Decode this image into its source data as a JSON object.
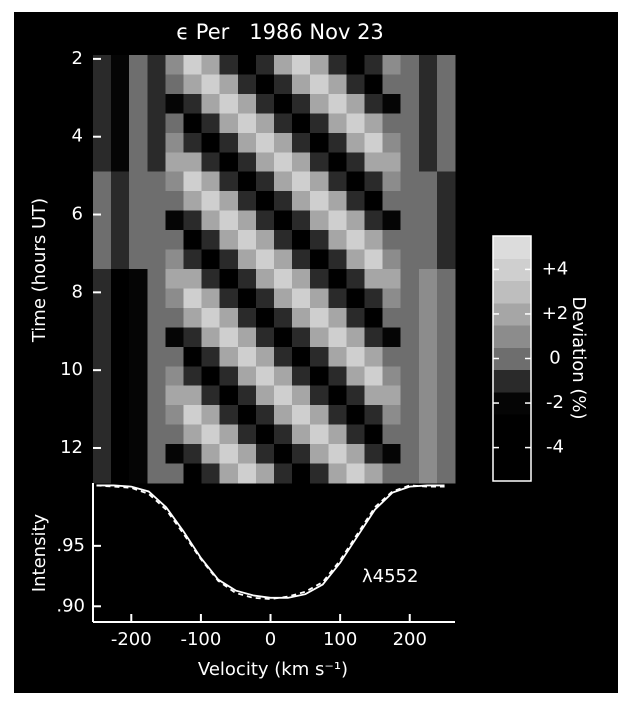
{
  "chart_data": [
    {
      "type": "heatmap",
      "title": "ϵ Per   1986 Nov 23",
      "ylabel": "Time (hours UT)",
      "x": [
        -242,
        -216,
        -190,
        -164,
        -138,
        -112,
        -86,
        -60,
        -34,
        -8,
        18,
        44,
        70,
        96,
        122,
        148,
        174,
        200,
        226,
        252
      ],
      "y": [
        2.15,
        2.65,
        3.15,
        3.65,
        4.15,
        4.65,
        5.15,
        5.65,
        6.15,
        6.65,
        7.15,
        7.65,
        8.15,
        8.65,
        9.15,
        9.65,
        10.15,
        10.65,
        11.15,
        11.65,
        12.15,
        12.65
      ],
      "values": [
        [
          -1,
          -2,
          0,
          -1,
          1,
          4,
          2,
          -1,
          -4,
          -1,
          2,
          4,
          2,
          -1,
          -4,
          -1,
          1,
          0,
          -1,
          0
        ],
        [
          -1,
          -2,
          0,
          -1,
          0,
          2,
          4,
          2,
          -1,
          -4,
          -1,
          2,
          4,
          2,
          -1,
          -4,
          0,
          0,
          -1,
          0
        ],
        [
          -1,
          -2,
          0,
          -1,
          -2,
          -1,
          2,
          4,
          2,
          -1,
          -4,
          -1,
          2,
          4,
          2,
          -1,
          -2,
          0,
          -1,
          0
        ],
        [
          -1,
          -2,
          0,
          -1,
          0,
          -4,
          -1,
          2,
          4,
          2,
          -1,
          -4,
          -1,
          2,
          4,
          2,
          0,
          0,
          -1,
          0
        ],
        [
          -1,
          -2,
          0,
          -1,
          1,
          -1,
          -4,
          -1,
          2,
          4,
          2,
          -1,
          -4,
          -1,
          2,
          4,
          1,
          0,
          -1,
          0
        ],
        [
          -1,
          -2,
          0,
          -1,
          2,
          2,
          -1,
          -4,
          -1,
          2,
          4,
          2,
          -1,
          -4,
          -1,
          2,
          2,
          0,
          -1,
          0
        ],
        [
          0,
          -1,
          0,
          0,
          1,
          4,
          2,
          -1,
          -4,
          -1,
          2,
          4,
          2,
          -1,
          -4,
          -1,
          1,
          0,
          0,
          -1
        ],
        [
          0,
          -1,
          0,
          0,
          0,
          2,
          4,
          2,
          -1,
          -4,
          -1,
          2,
          4,
          2,
          -1,
          -4,
          0,
          0,
          0,
          -1
        ],
        [
          0,
          -1,
          0,
          0,
          -2,
          -1,
          2,
          4,
          2,
          -1,
          -4,
          -1,
          2,
          4,
          2,
          -1,
          -2,
          0,
          0,
          -1
        ],
        [
          0,
          -1,
          0,
          0,
          0,
          -4,
          -1,
          2,
          4,
          2,
          -1,
          -4,
          -1,
          2,
          4,
          2,
          0,
          0,
          0,
          -1
        ],
        [
          0,
          -1,
          0,
          0,
          1,
          -1,
          -4,
          -1,
          2,
          4,
          2,
          -1,
          -4,
          -1,
          2,
          4,
          1,
          0,
          0,
          -1
        ],
        [
          -1,
          -3,
          -2,
          0,
          2,
          2,
          -1,
          -4,
          -1,
          2,
          4,
          2,
          -1,
          -4,
          -1,
          2,
          2,
          0,
          1,
          0
        ],
        [
          -1,
          -3,
          -2,
          0,
          1,
          4,
          2,
          -1,
          -4,
          -1,
          2,
          4,
          2,
          -1,
          -4,
          -1,
          1,
          0,
          1,
          0
        ],
        [
          -1,
          -3,
          -2,
          0,
          0,
          2,
          4,
          2,
          -1,
          -4,
          -1,
          2,
          4,
          2,
          -1,
          -4,
          0,
          0,
          1,
          0
        ],
        [
          -1,
          -3,
          -2,
          0,
          -2,
          -1,
          2,
          4,
          2,
          -1,
          -4,
          -1,
          2,
          4,
          2,
          -1,
          -2,
          0,
          1,
          0
        ],
        [
          -1,
          -3,
          -2,
          0,
          0,
          -4,
          -1,
          2,
          4,
          2,
          -1,
          -4,
          -1,
          2,
          4,
          2,
          0,
          0,
          1,
          0
        ],
        [
          -1,
          -3,
          -2,
          0,
          1,
          -1,
          -4,
          -1,
          2,
          4,
          2,
          -1,
          -4,
          -1,
          2,
          4,
          1,
          0,
          1,
          0
        ],
        [
          -1,
          -3,
          -2,
          0,
          2,
          2,
          -1,
          -4,
          -1,
          2,
          4,
          2,
          -1,
          -4,
          -1,
          2,
          2,
          0,
          1,
          0
        ],
        [
          -1,
          -3,
          -2,
          0,
          1,
          4,
          2,
          -1,
          -4,
          -1,
          2,
          4,
          2,
          -1,
          -4,
          -1,
          1,
          0,
          1,
          0
        ],
        [
          -1,
          -3,
          -2,
          0,
          0,
          2,
          4,
          2,
          -1,
          -4,
          -1,
          2,
          4,
          2,
          -1,
          -4,
          0,
          0,
          1,
          0
        ],
        [
          -1,
          -3,
          -2,
          0,
          -2,
          -1,
          2,
          4,
          2,
          -1,
          -4,
          -1,
          2,
          4,
          2,
          -1,
          -2,
          0,
          1,
          0
        ],
        [
          -1,
          -3,
          -2,
          0,
          0,
          -4,
          -1,
          2,
          4,
          2,
          -1,
          -4,
          -1,
          2,
          4,
          2,
          0,
          0,
          1,
          0
        ]
      ],
      "xlim": [
        -255,
        265
      ],
      "ylim": [
        1.9,
        12.9
      ],
      "y_inverted": true,
      "yticks": [
        2,
        4,
        6,
        8,
        10,
        12
      ],
      "clim": [
        -5.5,
        5.5
      ],
      "colors": [
        "#000000",
        "#000000",
        "#000000",
        "#050505",
        "#2a2a2a",
        "#6e6e6e",
        "#8c8c8c",
        "#a6a6a6",
        "#bebebe",
        "#cfcfcf",
        "#dcdcdc"
      ],
      "colorbar_label": "Deviation (%)",
      "colorbar_ticks": [
        {
          "value": 4,
          "label": "+4"
        },
        {
          "value": 2,
          "label": "+2"
        },
        0,
        -2,
        -4
      ]
    },
    {
      "type": "line",
      "ylabel": "Intensity",
      "xlabel": "Velocity (km s⁻¹)",
      "annotation": "λ4552",
      "x": [
        -250,
        -225,
        -200,
        -175,
        -150,
        -125,
        -100,
        -75,
        -50,
        -25,
        0,
        25,
        50,
        75,
        100,
        125,
        150,
        175,
        200,
        225,
        250
      ],
      "series": [
        {
          "color": "#ffffff",
          "line_style": "solid",
          "values": [
            1.0,
            1.0,
            0.999,
            0.995,
            0.982,
            0.962,
            0.94,
            0.922,
            0.913,
            0.909,
            0.907,
            0.907,
            0.91,
            0.918,
            0.936,
            0.958,
            0.98,
            0.994,
            0.999,
            1.0,
            1.0
          ]
        },
        {
          "color": "#ffffff",
          "line_style": "dashed",
          "values": [
            1.0,
            0.999,
            0.998,
            0.993,
            0.98,
            0.96,
            0.939,
            0.921,
            0.911,
            0.907,
            0.906,
            0.908,
            0.912,
            0.92,
            0.938,
            0.96,
            0.982,
            0.995,
            1.0,
            0.999,
            0.999
          ]
        }
      ],
      "xlim": [
        -255,
        265
      ],
      "ylim": [
        0.887,
        1.002
      ],
      "xticks": [
        -200,
        -100,
        0,
        100,
        200
      ],
      "yticks": [
        {
          "value": 0.9,
          "label": ".90"
        },
        {
          "value": 0.95,
          "label": ".95"
        }
      ]
    }
  ]
}
